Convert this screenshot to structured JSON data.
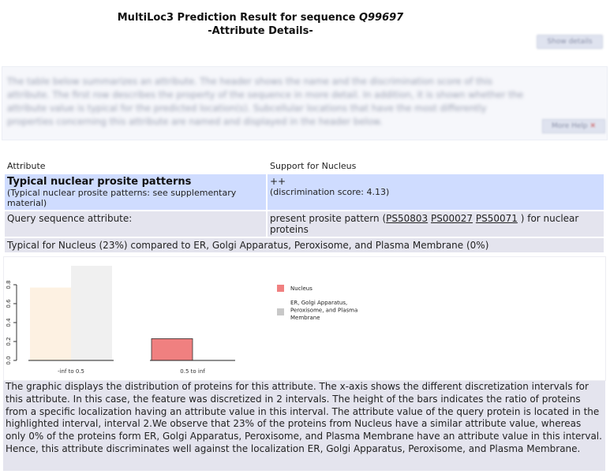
{
  "header": {
    "title_line1_prefix": "MultiLoc3 Prediction Result for sequence",
    "sequence_id": "Q99697",
    "title_line2": "-Attribute Details-",
    "show_button_label": "Show details",
    "more_button_label": "More Help"
  },
  "intro": {
    "text": "The table below summarizes an attribute. The header shows the name and the discrimination score of this attribute. The first row describes the property of the sequence in more detail. In addition, it is shown whether the attribute value is typical for the predicted location(s). Subcellular locations that have the most differently properties concerning this attribute are named and displayed in the header below."
  },
  "table": {
    "col1_header": "Attribute",
    "col2_header": "Support for Nucleus",
    "attribute_name": "Typical nuclear prosite patterns",
    "attribute_desc": "(Typical nuclear prosite patterns: see supplementary material)",
    "support_symbol": "++",
    "support_score": "(discrimination score: 4.13)",
    "query_label": "Query sequence attribute:",
    "query_value_prefix": "present prosite pattern (",
    "links": [
      "PS50803",
      "PS00027",
      "PS50071"
    ],
    "query_value_suffix": ") for nuclear proteins",
    "typical_text": "Typical for Nucleus (23%) compared to ER, Golgi Apparatus, Peroxisome, and Plasma Membrane (0%)"
  },
  "chart_data": {
    "type": "bar",
    "categories": [
      "-inf to 0.5",
      "0.5 to inf"
    ],
    "series": [
      {
        "name": "Nucleus",
        "values": [
          0.77,
          0.23
        ],
        "color": "#f08080",
        "highlight_color": "#fdf1e2"
      },
      {
        "name": "ER, Golgi Apparatus, Peroxisome, and Plasma Membrane",
        "values": [
          1.0,
          0.0
        ],
        "color": "#c8c8c8",
        "highlight_color": "#f0f0f0"
      }
    ],
    "highlighted_interval": 1,
    "ylim": [
      0,
      1.0
    ],
    "yticks": [
      "0.0",
      "0.2",
      "0.4",
      "0.6",
      "0.8"
    ],
    "legend_position": "right"
  },
  "description": {
    "text": "The graphic displays the distribution of proteins for this attribute. The x-axis shows the different discretization intervals for this attribute. In this case, the feature was discretized in 2 intervals. The height of the bars indicates the ratio of proteins from a specific localization having an attribute value in this interval. The attribute value of the query protein is located in the highlighted interval, interval 2.We observe that 23% of the proteins from Nucleus have a similar attribute value, whereas only 0% of the proteins form ER, Golgi Apparatus, Peroxisome, and Plasma Membrane have an attribute value in this interval. Hence, this attribute discriminates well against the localization ER, Golgi Apparatus, Peroxisome, and Plasma Membrane."
  }
}
